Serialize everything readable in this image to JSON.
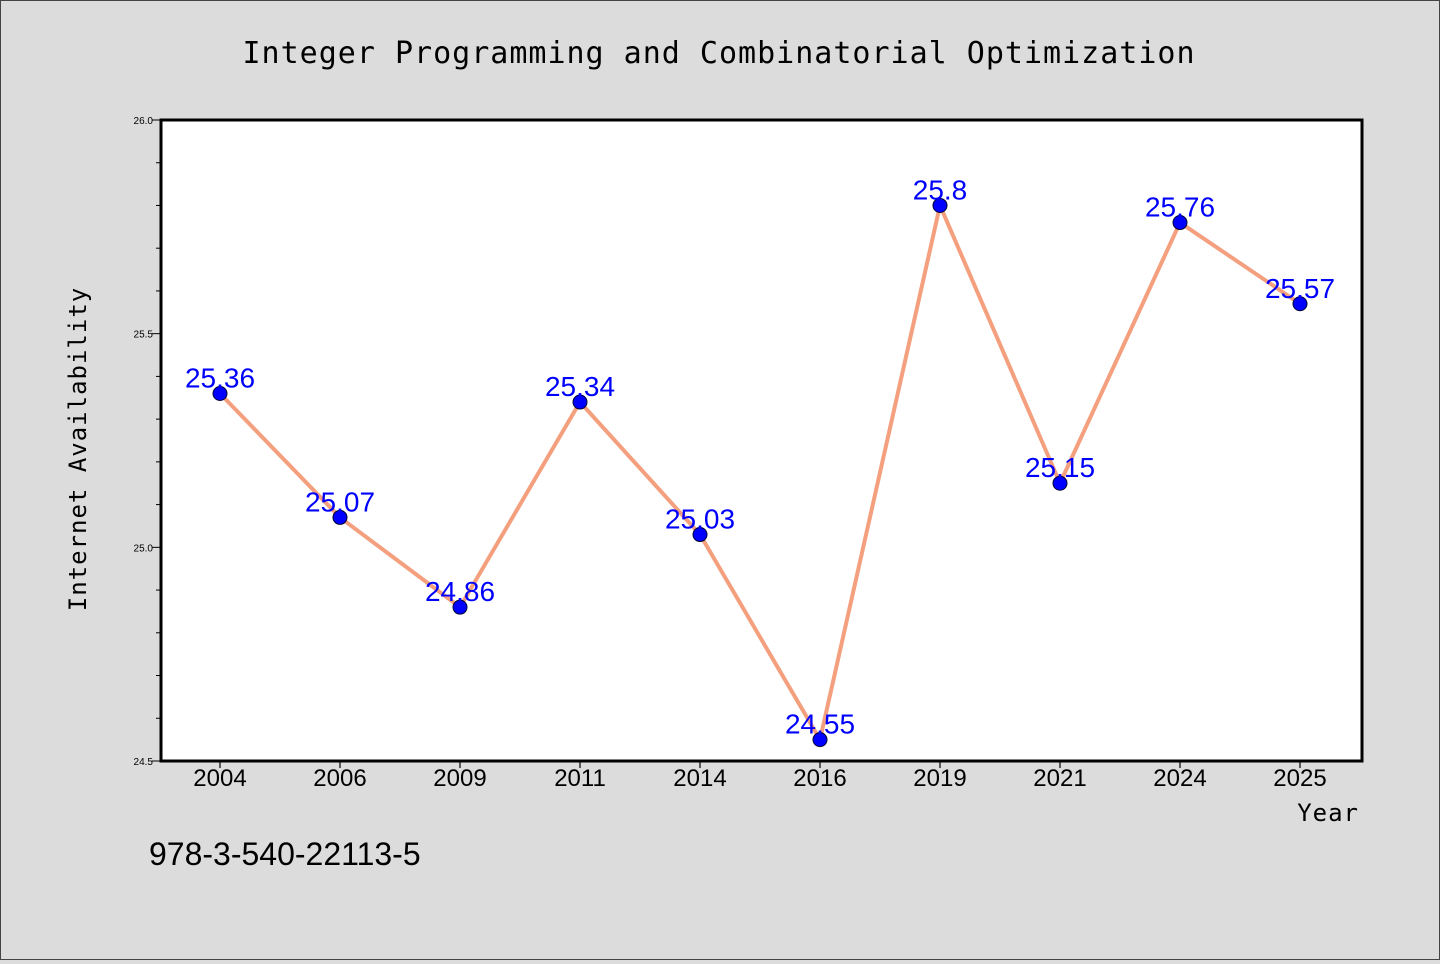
{
  "chart_data": {
    "type": "line",
    "title": "Integer Programming and Combinatorial Optimization",
    "xlabel": "Year",
    "ylabel": "Internet Availability",
    "categories": [
      "2004",
      "2006",
      "2009",
      "2011",
      "2014",
      "2016",
      "2019",
      "2021",
      "2024",
      "2025"
    ],
    "values": [
      25.36,
      25.07,
      24.86,
      25.34,
      25.03,
      24.55,
      25.8,
      25.15,
      25.76,
      25.57
    ],
    "data_labels": [
      "25.36",
      "25.07",
      "24.86",
      "25.34",
      "25.03",
      "24.55",
      "25.8",
      "25.15",
      "25.76",
      "25.57"
    ],
    "ylim": [
      24.5,
      26.0
    ],
    "yticks": [
      "24.5",
      "25.0",
      "25.5",
      "26.0"
    ],
    "grid": false,
    "line_color": "#f4a07e",
    "marker_color": "#0000ff",
    "label_color": "#0000ff",
    "background_color": "#dcdcdc",
    "plot_background": "#ffffff"
  },
  "footnote": "978-3-540-22113-5"
}
